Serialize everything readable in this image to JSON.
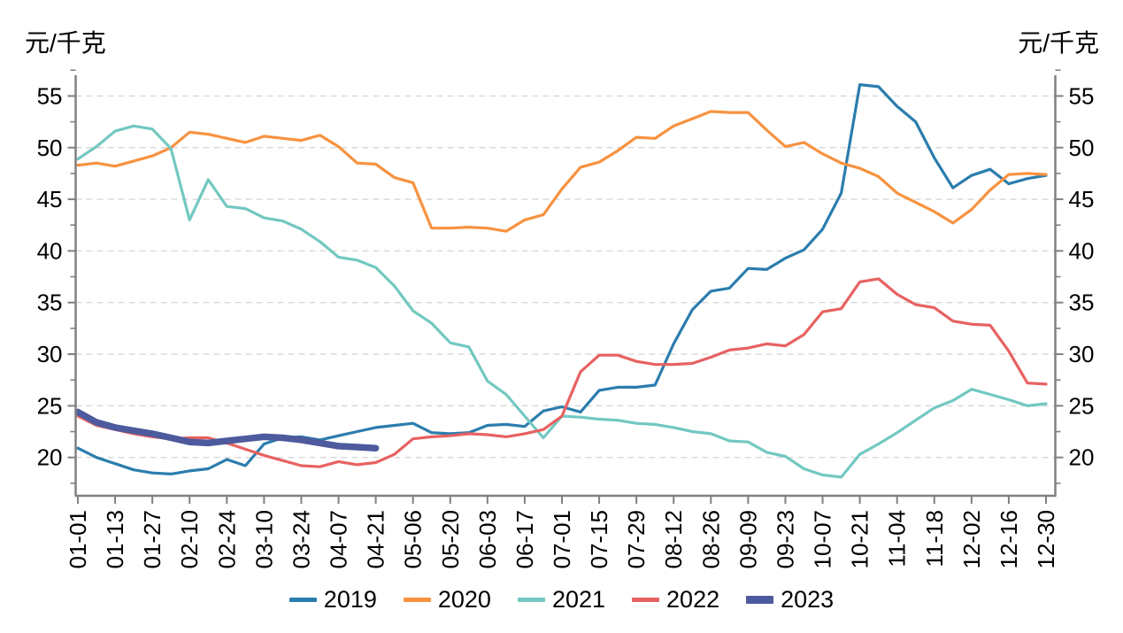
{
  "page": {
    "background": "#ffffff"
  },
  "axis": {
    "title_left": "元/千克",
    "title_right": "元/千克",
    "tick_color": "#808080",
    "grid_color": "#d8d8d8",
    "label_color": "#000000"
  },
  "chart_data": {
    "type": "line",
    "title": "",
    "ylabel_left": "元/千克",
    "ylabel_right": "元/千克",
    "ylim": [
      17.5,
      57.5
    ],
    "yticks": [
      20,
      25,
      30,
      35,
      40,
      45,
      50,
      55
    ],
    "yticks_minor": [
      17.5,
      22.5,
      27.5,
      32.5,
      37.5,
      42.5,
      47.5,
      52.5,
      57.5
    ],
    "grid": "horizontal-dashed",
    "legend_position": "bottom-center",
    "x_labels": [
      "01-01",
      "01-13",
      "01-27",
      "02-10",
      "02-24",
      "03-10",
      "03-24",
      "04-07",
      "04-21",
      "05-06",
      "05-20",
      "06-03",
      "06-17",
      "07-01",
      "07-15",
      "07-29",
      "08-12",
      "08-26",
      "09-09",
      "09-23",
      "10-07",
      "10-21",
      "11-04",
      "11-18",
      "12-02",
      "12-16",
      "12-30"
    ],
    "points_per_label": 2,
    "n_points": 53,
    "series": [
      {
        "name": "2019",
        "color": "#2b7dad",
        "width": 3.2,
        "values": [
          20.9,
          20.0,
          19.4,
          18.8,
          18.5,
          18.4,
          18.7,
          18.9,
          19.8,
          19.2,
          21.3,
          21.9,
          22.0,
          21.7,
          22.1,
          22.5,
          22.9,
          23.1,
          23.3,
          22.4,
          22.3,
          22.4,
          23.1,
          23.2,
          23.0,
          24.5,
          24.9,
          24.4,
          26.5,
          26.8,
          26.8,
          27.0,
          31.0,
          34.3,
          36.1,
          36.4,
          38.3,
          38.2,
          39.3,
          40.1,
          42.1,
          45.6,
          56.1,
          55.9,
          54.0,
          52.5,
          49.0,
          46.1,
          47.3,
          47.9,
          46.5,
          47.0,
          47.3
        ]
      },
      {
        "name": "2020",
        "color": "#f79240",
        "width": 3.2,
        "values": [
          48.3,
          48.5,
          48.2,
          48.7,
          49.2,
          50.0,
          51.5,
          51.3,
          50.9,
          50.5,
          51.1,
          50.9,
          50.7,
          51.2,
          50.1,
          48.5,
          48.4,
          47.1,
          46.6,
          42.2,
          42.2,
          42.3,
          42.2,
          41.9,
          43.0,
          43.5,
          46.0,
          48.1,
          48.6,
          49.7,
          51.0,
          50.9,
          52.1,
          52.8,
          53.5,
          53.4,
          53.4,
          51.7,
          50.1,
          50.5,
          49.4,
          48.5,
          48.0,
          47.2,
          45.6,
          44.7,
          43.8,
          42.7,
          44.0,
          45.9,
          47.4,
          47.5,
          47.4
        ]
      },
      {
        "name": "2021",
        "color": "#72c8c1",
        "width": 3.2,
        "values": [
          48.9,
          50.1,
          51.6,
          52.1,
          51.8,
          49.9,
          43.0,
          46.9,
          44.3,
          44.1,
          43.2,
          42.9,
          42.1,
          40.9,
          39.4,
          39.1,
          38.4,
          36.6,
          34.2,
          33.0,
          31.1,
          30.7,
          27.4,
          26.1,
          24.0,
          21.9,
          24.0,
          23.9,
          23.7,
          23.6,
          23.3,
          23.2,
          22.9,
          22.5,
          22.3,
          21.6,
          21.5,
          20.5,
          20.1,
          18.9,
          18.3,
          18.1,
          20.3,
          21.3,
          22.4,
          23.6,
          24.8,
          25.5,
          26.6,
          26.1,
          25.6,
          25.0,
          25.2
        ]
      },
      {
        "name": "2022",
        "color": "#e86161",
        "width": 3.2,
        "values": [
          24.0,
          23.1,
          22.7,
          22.3,
          22.0,
          21.8,
          21.9,
          21.9,
          21.4,
          20.8,
          20.2,
          19.7,
          19.2,
          19.1,
          19.6,
          19.3,
          19.5,
          20.3,
          21.8,
          22.0,
          22.1,
          22.3,
          22.2,
          22.0,
          22.3,
          22.7,
          24.0,
          28.3,
          29.9,
          29.9,
          29.3,
          29.0,
          29.0,
          29.1,
          29.7,
          30.4,
          30.6,
          31.0,
          30.8,
          31.9,
          34.1,
          34.4,
          37.0,
          37.3,
          35.8,
          34.8,
          34.5,
          33.2,
          32.9,
          32.8,
          30.3,
          27.2,
          27.1
        ]
      },
      {
        "name": "2023",
        "color": "#4d5a9e",
        "width": 7.5,
        "values": [
          24.4,
          23.4,
          22.9,
          22.6,
          22.3,
          21.9,
          21.5,
          21.4,
          21.6,
          21.8,
          22.0,
          21.9,
          21.7,
          21.4,
          21.1,
          21.0,
          20.9
        ]
      }
    ]
  }
}
